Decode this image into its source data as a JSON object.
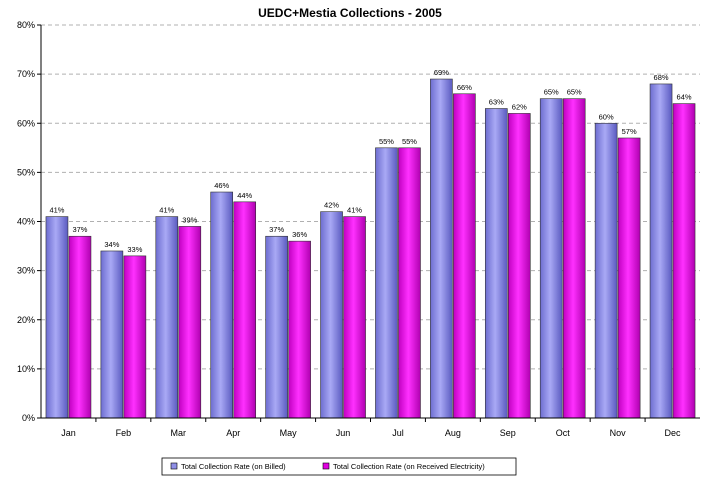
{
  "chart_data": {
    "type": "bar",
    "title": "UEDC+Mestia Collections - 2005",
    "xlabel": "",
    "ylabel": "",
    "categories": [
      "Jan",
      "Feb",
      "Mar",
      "Apr",
      "May",
      "Jun",
      "Jul",
      "Aug",
      "Sep",
      "Oct",
      "Nov",
      "Dec"
    ],
    "ylim": [
      0,
      80
    ],
    "yticks": [
      0,
      10,
      20,
      30,
      40,
      50,
      60,
      70,
      80
    ],
    "ytick_suffix": "%",
    "grid": true,
    "legend_position": "bottom",
    "series": [
      {
        "name": "Total Collection Rate (on Billed)",
        "color": "#8f8fe6",
        "values": [
          41,
          34,
          41,
          46,
          37,
          42,
          55,
          69,
          63,
          65,
          60,
          68
        ],
        "labels": [
          "41%",
          "34%",
          "41%",
          "46%",
          "37%",
          "42%",
          "55%",
          "69%",
          "63%",
          "65%",
          "60%",
          "68%"
        ]
      },
      {
        "name": "Total Collection Rate (on Received Electricity)",
        "color": "#e000e0",
        "values": [
          37,
          33,
          39,
          44,
          36,
          41,
          55,
          66,
          62,
          65,
          57,
          64
        ],
        "labels": [
          "37%",
          "33%",
          "39%",
          "44%",
          "36%",
          "41%",
          "55%",
          "66%",
          "62%",
          "65%",
          "57%",
          "64%"
        ]
      }
    ]
  }
}
